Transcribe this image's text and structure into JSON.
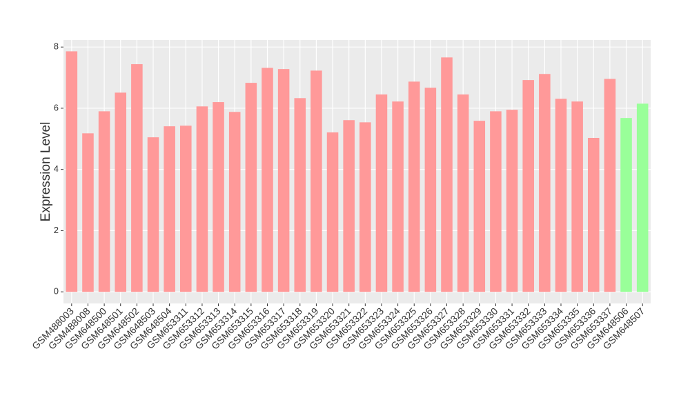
{
  "chart_data": {
    "type": "bar",
    "y_label": "Expression Level",
    "categories": [
      "GSM488003",
      "GSM488008",
      "GSM648500",
      "GSM648501",
      "GSM648502",
      "GSM648503",
      "GSM648504",
      "GSM653311",
      "GSM653312",
      "GSM653313",
      "GSM653314",
      "GSM653315",
      "GSM653316",
      "GSM653317",
      "GSM653318",
      "GSM653319",
      "GSM653320",
      "GSM653321",
      "GSM653322",
      "GSM653323",
      "GSM653324",
      "GSM653325",
      "GSM653326",
      "GSM653327",
      "GSM653328",
      "GSM653329",
      "GSM653330",
      "GSM653331",
      "GSM653332",
      "GSM653333",
      "GSM653334",
      "GSM653335",
      "GSM653336",
      "GSM653337",
      "GSM648506",
      "GSM648507"
    ],
    "values": [
      7.86,
      5.18,
      5.9,
      6.51,
      7.44,
      5.05,
      5.41,
      5.43,
      6.06,
      6.2,
      5.88,
      6.83,
      7.32,
      7.28,
      6.33,
      7.23,
      5.21,
      5.61,
      5.54,
      6.45,
      6.22,
      6.87,
      6.67,
      7.66,
      6.45,
      5.59,
      5.9,
      5.95,
      6.92,
      7.12,
      6.31,
      6.22,
      5.03,
      6.96,
      5.68,
      6.15
    ],
    "colors": [
      "#ff9999",
      "#ff9999",
      "#ff9999",
      "#ff9999",
      "#ff9999",
      "#ff9999",
      "#ff9999",
      "#ff9999",
      "#ff9999",
      "#ff9999",
      "#ff9999",
      "#ff9999",
      "#ff9999",
      "#ff9999",
      "#ff9999",
      "#ff9999",
      "#ff9999",
      "#ff9999",
      "#ff9999",
      "#ff9999",
      "#ff9999",
      "#ff9999",
      "#ff9999",
      "#ff9999",
      "#ff9999",
      "#ff9999",
      "#ff9999",
      "#ff9999",
      "#ff9999",
      "#ff9999",
      "#ff9999",
      "#ff9999",
      "#ff9999",
      "#ff9999",
      "#99ff99",
      "#99ff99"
    ],
    "ylim": [
      -0.38,
      8.23
    ],
    "yticks": [
      0,
      2,
      4,
      6,
      8
    ],
    "grid": true
  }
}
